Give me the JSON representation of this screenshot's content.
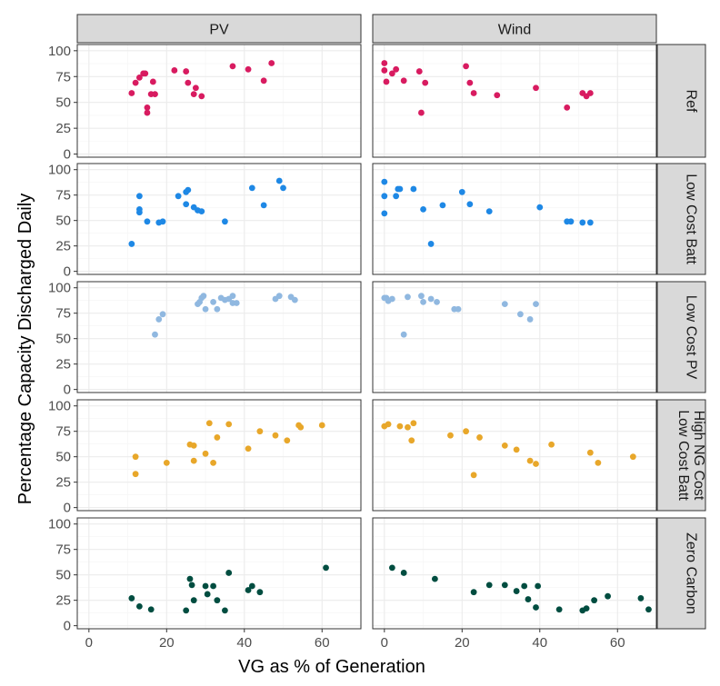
{
  "chart_data": {
    "type": "scatter",
    "layout": "facet_grid",
    "xlabel": "VG as % of Generation",
    "ylabel": "Percentage Capacity Discharged Daily",
    "xlim": [
      -3,
      70
    ],
    "ylim": [
      -3,
      106
    ],
    "x_ticks": [
      0,
      20,
      40,
      60
    ],
    "x_tick_labels": [
      "0",
      "20",
      "40",
      "60"
    ],
    "y_ticks": [
      0,
      25,
      50,
      75,
      100
    ],
    "y_tick_labels": [
      "0",
      "25",
      "50",
      "75",
      "100"
    ],
    "columns": [
      "PV",
      "Wind"
    ],
    "rows": [
      {
        "label_lines": [
          "Ref"
        ],
        "color": "#d81b60",
        "PV": [
          [
            11,
            59
          ],
          [
            12,
            69
          ],
          [
            13,
            74
          ],
          [
            14,
            78
          ],
          [
            14.5,
            78
          ],
          [
            15,
            45
          ],
          [
            15,
            40
          ],
          [
            16,
            58
          ],
          [
            16.5,
            70
          ],
          [
            17,
            58
          ],
          [
            22,
            81
          ],
          [
            25,
            80
          ],
          [
            25.5,
            69
          ],
          [
            27,
            58
          ],
          [
            27.5,
            64
          ],
          [
            29,
            56
          ],
          [
            37,
            85
          ],
          [
            41,
            82
          ],
          [
            45,
            71
          ],
          [
            47,
            88
          ]
        ],
        "Wind": [
          [
            0,
            88
          ],
          [
            0,
            81
          ],
          [
            0.5,
            70
          ],
          [
            2,
            78
          ],
          [
            3,
            82
          ],
          [
            5,
            71
          ],
          [
            9,
            80
          ],
          [
            9.5,
            40
          ],
          [
            10.5,
            69
          ],
          [
            21,
            85
          ],
          [
            22,
            69
          ],
          [
            23,
            59
          ],
          [
            29,
            57
          ],
          [
            39,
            64
          ],
          [
            47,
            45
          ],
          [
            51,
            59
          ],
          [
            52,
            56
          ],
          [
            53,
            59
          ]
        ]
      },
      {
        "label_lines": [
          "Low Cost Batt"
        ],
        "color": "#1e88e5",
        "PV": [
          [
            11,
            27
          ],
          [
            13,
            74
          ],
          [
            13,
            61
          ],
          [
            13,
            58
          ],
          [
            15,
            49
          ],
          [
            18,
            48
          ],
          [
            19,
            49
          ],
          [
            23,
            74
          ],
          [
            25,
            78
          ],
          [
            25.5,
            80
          ],
          [
            25,
            66
          ],
          [
            27,
            63
          ],
          [
            28,
            60
          ],
          [
            29,
            59
          ],
          [
            35,
            49
          ],
          [
            42,
            82
          ],
          [
            45,
            65
          ],
          [
            49,
            89
          ],
          [
            50,
            82
          ]
        ],
        "Wind": [
          [
            0,
            88
          ],
          [
            0,
            74
          ],
          [
            0,
            57
          ],
          [
            3,
            74
          ],
          [
            3.5,
            81
          ],
          [
            4,
            81
          ],
          [
            7.5,
            81
          ],
          [
            10,
            61
          ],
          [
            12,
            27
          ],
          [
            15,
            65
          ],
          [
            20,
            78
          ],
          [
            22,
            66
          ],
          [
            27,
            59
          ],
          [
            40,
            63
          ],
          [
            47,
            49
          ],
          [
            48,
            49
          ],
          [
            51,
            48
          ],
          [
            53,
            48
          ]
        ]
      },
      {
        "label_lines": [
          "Low Cost PV"
        ],
        "color": "#90b8e0",
        "PV": [
          [
            17,
            54
          ],
          [
            18,
            69
          ],
          [
            19,
            74
          ],
          [
            28,
            84
          ],
          [
            28.5,
            86
          ],
          [
            29,
            90
          ],
          [
            29.5,
            92
          ],
          [
            30,
            79
          ],
          [
            32,
            86
          ],
          [
            33,
            79
          ],
          [
            34,
            90
          ],
          [
            35,
            88
          ],
          [
            36,
            89
          ],
          [
            37,
            85
          ],
          [
            37,
            92
          ],
          [
            38,
            85
          ],
          [
            48,
            89
          ],
          [
            49,
            92
          ],
          [
            52,
            91
          ],
          [
            53,
            88
          ]
        ],
        "Wind": [
          [
            0,
            90
          ],
          [
            0.5,
            90
          ],
          [
            1,
            87
          ],
          [
            2,
            89
          ],
          [
            5,
            54
          ],
          [
            6,
            91
          ],
          [
            9.5,
            92
          ],
          [
            10,
            86
          ],
          [
            12,
            89
          ],
          [
            13.5,
            86
          ],
          [
            18,
            79
          ],
          [
            19,
            79
          ],
          [
            31,
            84
          ],
          [
            35,
            74
          ],
          [
            37.5,
            69
          ],
          [
            39,
            84
          ]
        ]
      },
      {
        "label_lines": [
          "High NG Cost",
          "Low Cost Batt"
        ],
        "color": "#e8a72a",
        "PV": [
          [
            12,
            50
          ],
          [
            12,
            33
          ],
          [
            20,
            44
          ],
          [
            26,
            62
          ],
          [
            27,
            61
          ],
          [
            27,
            46
          ],
          [
            30,
            53
          ],
          [
            31,
            83
          ],
          [
            32,
            44
          ],
          [
            33,
            69
          ],
          [
            36,
            82
          ],
          [
            41,
            58
          ],
          [
            44,
            75
          ],
          [
            48,
            71
          ],
          [
            51,
            66
          ],
          [
            54,
            81
          ],
          [
            54.5,
            79
          ],
          [
            60,
            81
          ]
        ],
        "Wind": [
          [
            0,
            80
          ],
          [
            1,
            82
          ],
          [
            4,
            80
          ],
          [
            6,
            79
          ],
          [
            7,
            66
          ],
          [
            7.5,
            83
          ],
          [
            17,
            71
          ],
          [
            21,
            75
          ],
          [
            23,
            32
          ],
          [
            24.5,
            69
          ],
          [
            31,
            61
          ],
          [
            34,
            57
          ],
          [
            37.5,
            46
          ],
          [
            39,
            43
          ],
          [
            43,
            62
          ],
          [
            53,
            54
          ],
          [
            55,
            44
          ],
          [
            64,
            50
          ]
        ]
      },
      {
        "label_lines": [
          "Zero Carbon"
        ],
        "color": "#004d40",
        "PV": [
          [
            11,
            27
          ],
          [
            13,
            19
          ],
          [
            16,
            16
          ],
          [
            25,
            15
          ],
          [
            26,
            46
          ],
          [
            26.5,
            40
          ],
          [
            27,
            25
          ],
          [
            30,
            39
          ],
          [
            30.5,
            31
          ],
          [
            32,
            39
          ],
          [
            33,
            25
          ],
          [
            35,
            15
          ],
          [
            36,
            52
          ],
          [
            41,
            35
          ],
          [
            42,
            39
          ],
          [
            44,
            33
          ],
          [
            61,
            57
          ]
        ],
        "Wind": [
          [
            2,
            57
          ],
          [
            5,
            52
          ],
          [
            13,
            46
          ],
          [
            23,
            33
          ],
          [
            27,
            40
          ],
          [
            31,
            40
          ],
          [
            34,
            34
          ],
          [
            36,
            39
          ],
          [
            37,
            26
          ],
          [
            39,
            18
          ],
          [
            39.5,
            39
          ],
          [
            45,
            16
          ],
          [
            51,
            15
          ],
          [
            52,
            17
          ],
          [
            54,
            25
          ],
          [
            57.5,
            29
          ],
          [
            66,
            27
          ],
          [
            68,
            16
          ]
        ]
      }
    ]
  }
}
